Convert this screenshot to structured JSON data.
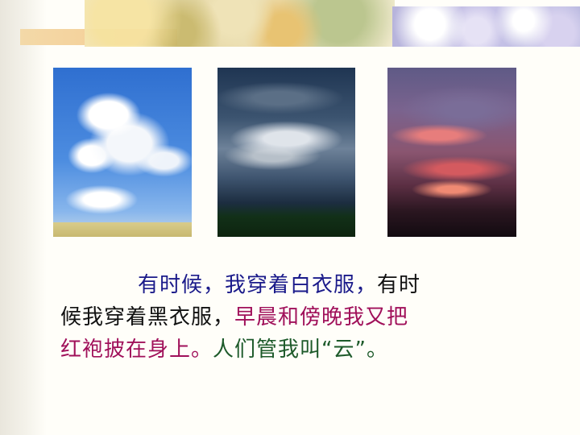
{
  "colors": {
    "blue_text": "#1a1a8a",
    "black_text": "#111111",
    "red_text": "#a0105a",
    "green_text": "#1d5a2a"
  },
  "photos": [
    {
      "subject": "white clouds in blue sky"
    },
    {
      "subject": "dark storm clouds"
    },
    {
      "subject": "red sunset clouds"
    }
  ],
  "text": {
    "line1_blue_a": "有时候，我穿着白衣服，",
    "line1_black": "有时",
    "line2_black": "候我穿着黑衣服，",
    "line2_red": "早晨和傍晚我又把",
    "line3_red": "红袍披在身上。",
    "line3_green": "人们管我叫“云”。"
  }
}
